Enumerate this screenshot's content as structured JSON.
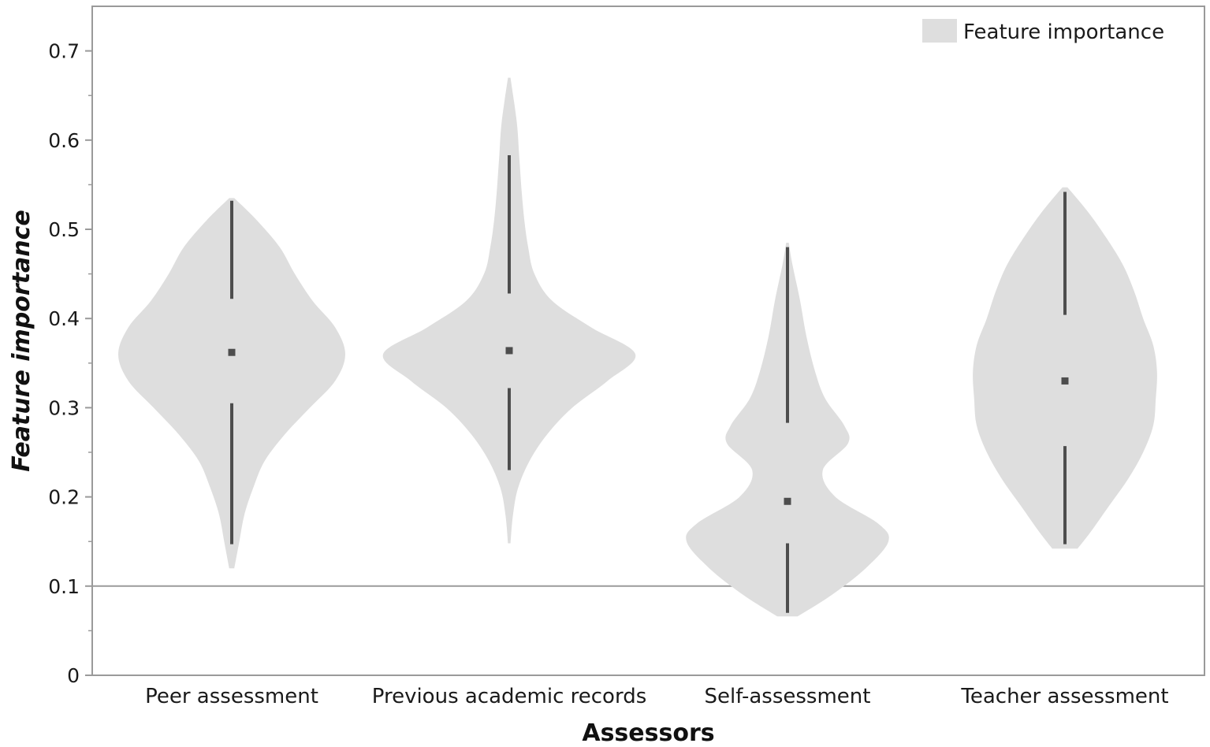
{
  "chart_data": {
    "type": "violin",
    "xlabel": "Assessors",
    "ylabel": "Feature importance",
    "ylim": [
      0,
      0.75
    ],
    "yticks": [
      "0",
      "0.1",
      "0.2",
      "0.3",
      "0.4",
      "0.5",
      "0.6",
      "0.7"
    ],
    "yticks_values": [
      0,
      0.1,
      0.2,
      0.3,
      0.4,
      0.5,
      0.6,
      0.7
    ],
    "reference_line": 0.1,
    "legend": {
      "label": "Feature importance",
      "position": "top-right"
    },
    "colors": {
      "violin": "#dedede",
      "whisker": "#4d4d4d",
      "median": "#4d4d4d",
      "axis": "#9a9a9a"
    },
    "categories": [
      "Peer assessment",
      "Previous academic records",
      "Self-assessment",
      "Teacher assessment"
    ],
    "violins": [
      {
        "category": "Peer assessment",
        "min": 0.12,
        "max": 0.535,
        "q1": 0.305,
        "median": 0.362,
        "q3": 0.422,
        "whisker_low": 0.147,
        "whisker_high": 0.532,
        "density": [
          [
            0.12,
            0.02
          ],
          [
            0.15,
            0.06
          ],
          [
            0.18,
            0.1
          ],
          [
            0.21,
            0.17
          ],
          [
            0.24,
            0.26
          ],
          [
            0.27,
            0.42
          ],
          [
            0.3,
            0.62
          ],
          [
            0.33,
            0.82
          ],
          [
            0.36,
            0.9
          ],
          [
            0.39,
            0.82
          ],
          [
            0.42,
            0.64
          ],
          [
            0.45,
            0.5
          ],
          [
            0.48,
            0.38
          ],
          [
            0.51,
            0.2
          ],
          [
            0.535,
            0.02
          ]
        ]
      },
      {
        "category": "Previous academic records",
        "min": 0.148,
        "max": 0.67,
        "q1": 0.322,
        "median": 0.364,
        "q3": 0.428,
        "whisker_low": 0.23,
        "whisker_high": 0.583,
        "density": [
          [
            0.148,
            0.01
          ],
          [
            0.18,
            0.03
          ],
          [
            0.21,
            0.07
          ],
          [
            0.24,
            0.16
          ],
          [
            0.27,
            0.3
          ],
          [
            0.3,
            0.5
          ],
          [
            0.33,
            0.78
          ],
          [
            0.36,
            1.0
          ],
          [
            0.39,
            0.65
          ],
          [
            0.42,
            0.34
          ],
          [
            0.45,
            0.2
          ],
          [
            0.48,
            0.15
          ],
          [
            0.51,
            0.12
          ],
          [
            0.54,
            0.1
          ],
          [
            0.58,
            0.08
          ],
          [
            0.62,
            0.06
          ],
          [
            0.67,
            0.01
          ]
        ]
      },
      {
        "category": "Self-assessment",
        "min": 0.066,
        "max": 0.485,
        "q1": 0.148,
        "median": 0.195,
        "q3": 0.283,
        "whisker_low": 0.07,
        "whisker_high": 0.48,
        "density": [
          [
            0.066,
            0.08
          ],
          [
            0.09,
            0.35
          ],
          [
            0.12,
            0.62
          ],
          [
            0.15,
            0.8
          ],
          [
            0.17,
            0.72
          ],
          [
            0.2,
            0.38
          ],
          [
            0.23,
            0.28
          ],
          [
            0.26,
            0.48
          ],
          [
            0.28,
            0.45
          ],
          [
            0.31,
            0.3
          ],
          [
            0.34,
            0.22
          ],
          [
            0.38,
            0.15
          ],
          [
            0.42,
            0.1
          ],
          [
            0.46,
            0.04
          ],
          [
            0.485,
            0.01
          ]
        ]
      },
      {
        "category": "Teacher assessment",
        "min": 0.142,
        "max": 0.547,
        "q1": 0.257,
        "median": 0.33,
        "q3": 0.404,
        "whisker_low": 0.147,
        "whisker_high": 0.542,
        "density": [
          [
            0.142,
            0.1
          ],
          [
            0.16,
            0.2
          ],
          [
            0.19,
            0.35
          ],
          [
            0.22,
            0.5
          ],
          [
            0.25,
            0.62
          ],
          [
            0.28,
            0.7
          ],
          [
            0.31,
            0.72
          ],
          [
            0.34,
            0.73
          ],
          [
            0.37,
            0.7
          ],
          [
            0.4,
            0.62
          ],
          [
            0.43,
            0.55
          ],
          [
            0.46,
            0.46
          ],
          [
            0.49,
            0.33
          ],
          [
            0.52,
            0.18
          ],
          [
            0.547,
            0.02
          ]
        ]
      }
    ]
  }
}
